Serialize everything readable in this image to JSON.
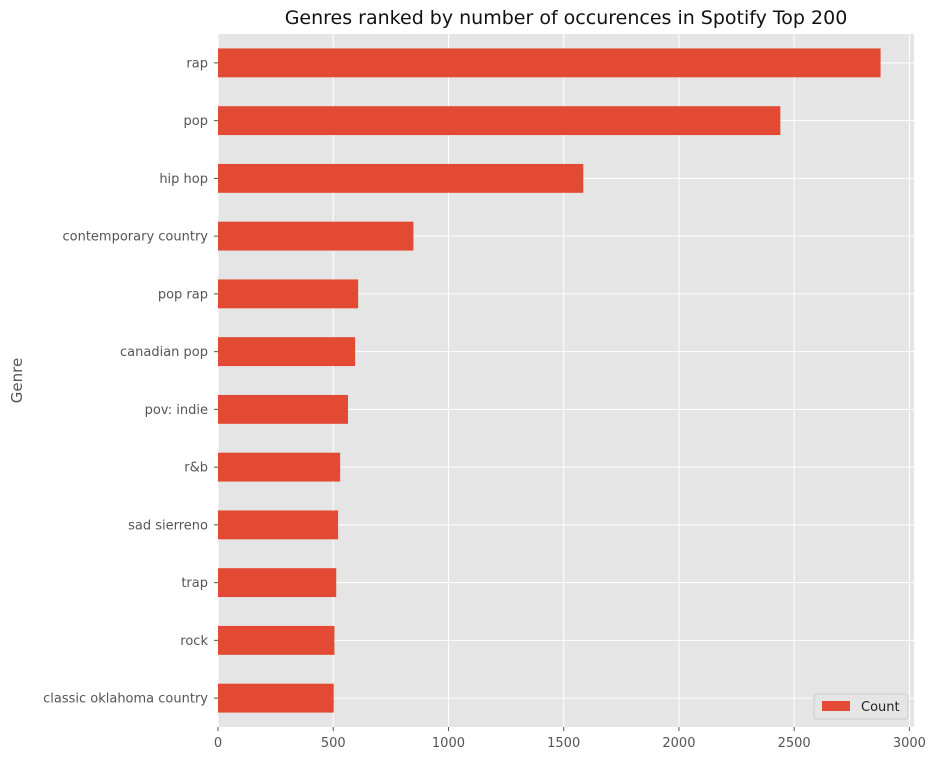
{
  "chart_data": {
    "type": "bar",
    "orientation": "horizontal",
    "title": "Genres ranked by number of occurences in Spotify Top 200",
    "xlabel": "",
    "ylabel": "Genre",
    "categories": [
      "rap",
      "pop",
      "hip hop",
      "contemporary country",
      "pop rap",
      "canadian pop",
      "pov: indie",
      "r&b",
      "sad sierreno",
      "trap",
      "rock",
      "classic oklahoma country"
    ],
    "series": [
      {
        "name": "Count",
        "values": [
          2875,
          2440,
          1585,
          848,
          608,
          595,
          564,
          530,
          521,
          513,
          505,
          502
        ]
      }
    ],
    "xlim": [
      0,
      3020
    ],
    "xticks": [
      0,
      500,
      1000,
      1500,
      2000,
      2500,
      3000
    ],
    "grid": true,
    "legend_position": "bottom-right",
    "colors": {
      "bar": "#E24A33",
      "background": "#E5E5E5",
      "grid": "#FFFFFF"
    }
  }
}
